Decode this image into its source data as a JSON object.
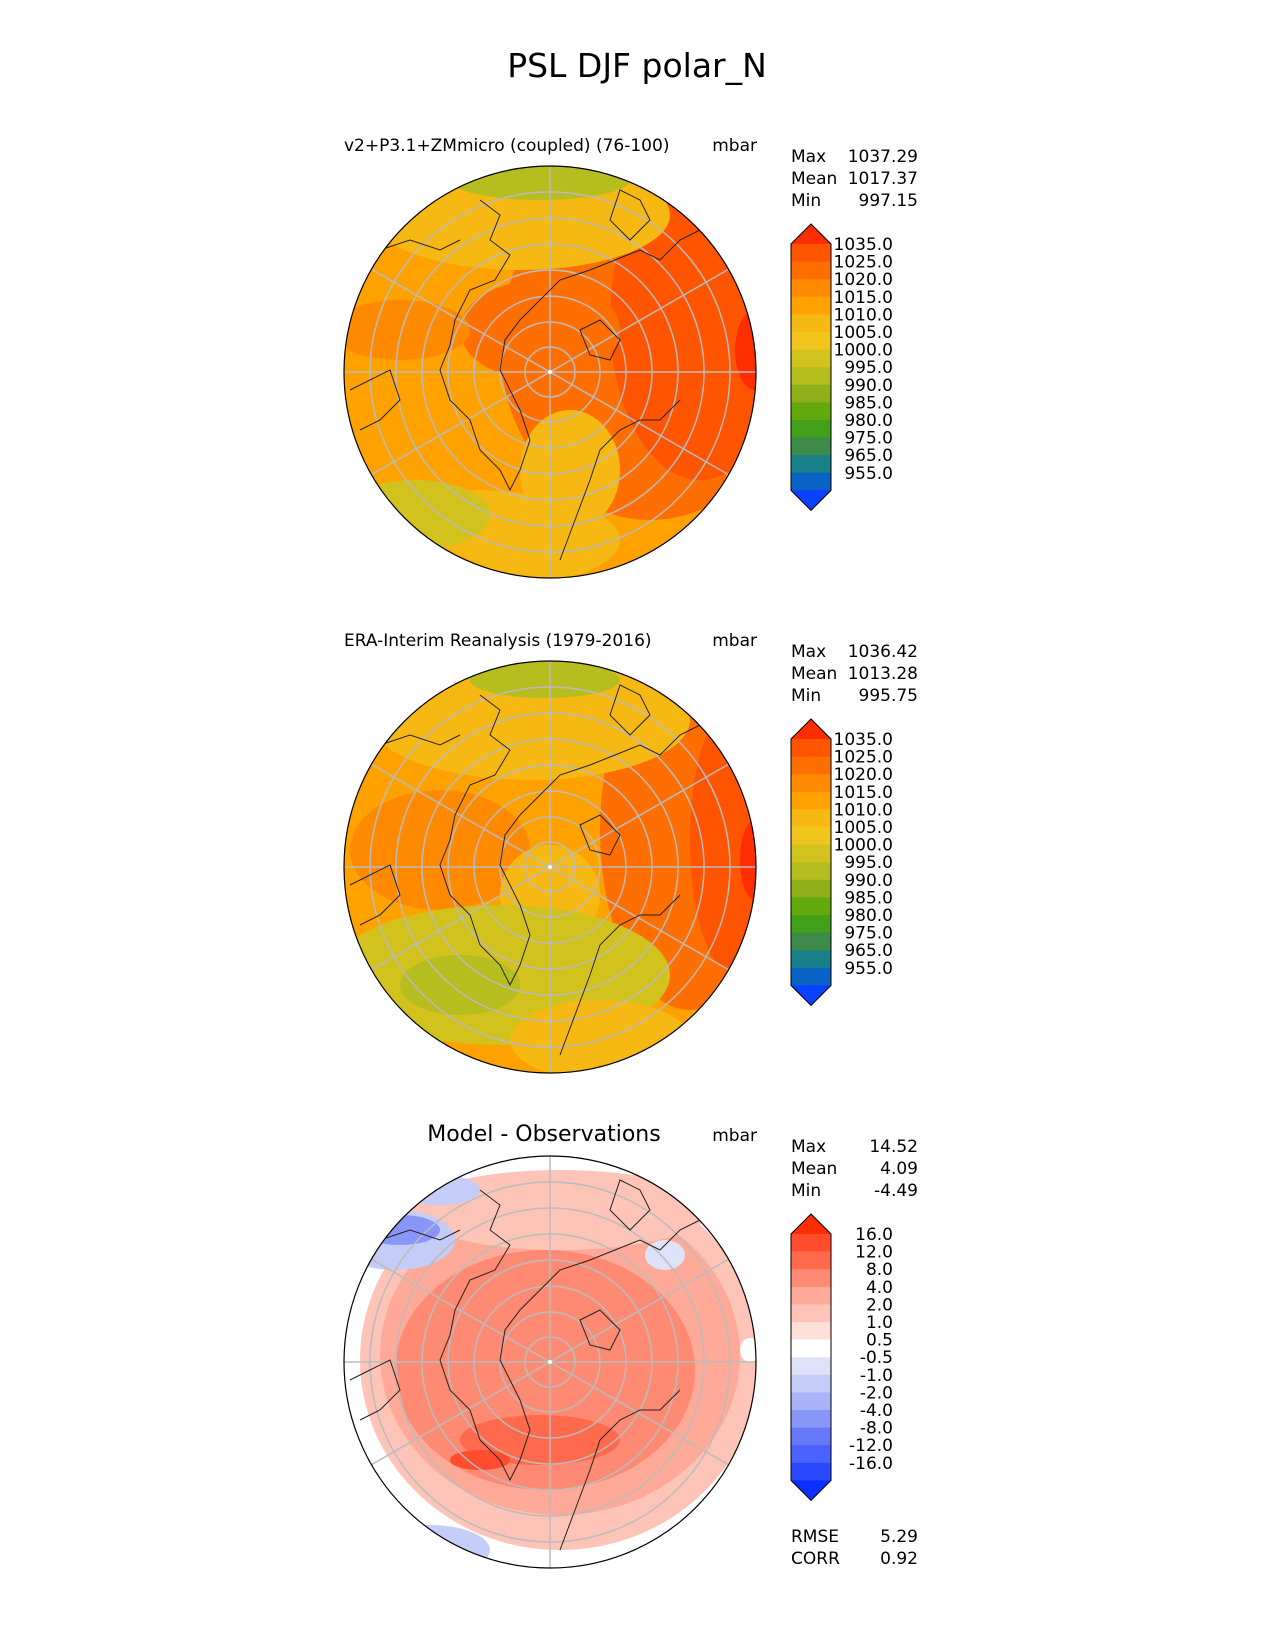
{
  "figure_title": "PSL DJF polar_N",
  "panels": [
    {
      "id": "test",
      "title": "v2+P3.1+ZMmicro (coupled) (76-100)",
      "units": "mbar",
      "stats": [
        {
          "label": "Max",
          "value": "1037.29"
        },
        {
          "label": "Mean",
          "value": "1017.37"
        },
        {
          "label": "Min",
          "value": "997.15"
        }
      ],
      "colorbar": {
        "labels": [
          "1035.0",
          "1025.0",
          "1020.0",
          "1015.0",
          "1010.0",
          "1005.0",
          "1000.0",
          "995.0",
          "990.0",
          "985.0",
          "980.0",
          "975.0",
          "965.0",
          "955.0"
        ],
        "colors": [
          "#ff2e00",
          "#ff5500",
          "#ff6e00",
          "#ff8a00",
          "#ffa200",
          "#f6b812",
          "#f2c51e",
          "#d1c21e",
          "#b5bd1f",
          "#8fb018",
          "#64a90c",
          "#42a01b",
          "#3d8a4a",
          "#19808a",
          "#0a62c4",
          "#0a40ff"
        ]
      }
    },
    {
      "id": "reference",
      "title": "ERA-Interim Reanalysis (1979-2016)",
      "units": "mbar",
      "stats": [
        {
          "label": "Max",
          "value": "1036.42"
        },
        {
          "label": "Mean",
          "value": "1013.28"
        },
        {
          "label": "Min",
          "value": "995.75"
        }
      ],
      "colorbar": {
        "labels": [
          "1035.0",
          "1025.0",
          "1020.0",
          "1015.0",
          "1010.0",
          "1005.0",
          "1000.0",
          "995.0",
          "990.0",
          "985.0",
          "980.0",
          "975.0",
          "965.0",
          "955.0"
        ],
        "colors": [
          "#ff2e00",
          "#ff5500",
          "#ff6e00",
          "#ff8a00",
          "#ffa200",
          "#f6b812",
          "#f2c51e",
          "#d1c21e",
          "#b5bd1f",
          "#8fb018",
          "#64a90c",
          "#42a01b",
          "#3d8a4a",
          "#19808a",
          "#0a62c4",
          "#0a40ff"
        ]
      }
    },
    {
      "id": "difference",
      "title": "Model - Observations",
      "units": "mbar",
      "stats": [
        {
          "label": "Max",
          "value": "14.52"
        },
        {
          "label": "Mean",
          "value": "4.09"
        },
        {
          "label": "Min",
          "value": "-4.49"
        }
      ],
      "colorbar": {
        "labels": [
          "16.0",
          "12.0",
          "8.0",
          "4.0",
          "2.0",
          "1.0",
          "0.5",
          "-0.5",
          "-1.0",
          "-2.0",
          "-4.0",
          "-8.0",
          "-12.0",
          "-16.0"
        ],
        "colors": [
          "#ff2e00",
          "#ff4d2e",
          "#ff6a4d",
          "#ff8a73",
          "#ffaa99",
          "#ffc4b8",
          "#ffe0d8",
          "#ffffff",
          "#dde2f8",
          "#c4ccf8",
          "#a8b3f8",
          "#8896f8",
          "#6478f8",
          "#4a62ff",
          "#2a48ff",
          "#0a30ff"
        ]
      },
      "extra_stats": [
        {
          "label": "RMSE",
          "value": "5.29"
        },
        {
          "label": "CORR",
          "value": "0.92"
        }
      ]
    }
  ],
  "chart_data": [
    {
      "type": "heatmap",
      "title": "v2+P3.1+ZMmicro (coupled) (76-100)",
      "projection": "north polar stereographic",
      "units": "mbar",
      "variable": "PSL",
      "season": "DJF",
      "max": 1037.29,
      "mean": 1017.37,
      "min": 997.15,
      "levels": [
        955,
        965,
        975,
        980,
        985,
        990,
        995,
        1000,
        1005,
        1010,
        1015,
        1020,
        1025,
        1035
      ]
    },
    {
      "type": "heatmap",
      "title": "ERA-Interim Reanalysis (1979-2016)",
      "projection": "north polar stereographic",
      "units": "mbar",
      "variable": "PSL",
      "season": "DJF",
      "max": 1036.42,
      "mean": 1013.28,
      "min": 995.75,
      "levels": [
        955,
        965,
        975,
        980,
        985,
        990,
        995,
        1000,
        1005,
        1010,
        1015,
        1020,
        1025,
        1035
      ]
    },
    {
      "type": "heatmap",
      "title": "Model - Observations",
      "projection": "north polar stereographic",
      "units": "mbar",
      "max": 14.52,
      "mean": 4.09,
      "min": -4.49,
      "rmse": 5.29,
      "corr": 0.92,
      "levels": [
        -16,
        -12,
        -8,
        -4,
        -2,
        -1,
        -0.5,
        0.5,
        1,
        2,
        4,
        8,
        12,
        16
      ]
    }
  ]
}
